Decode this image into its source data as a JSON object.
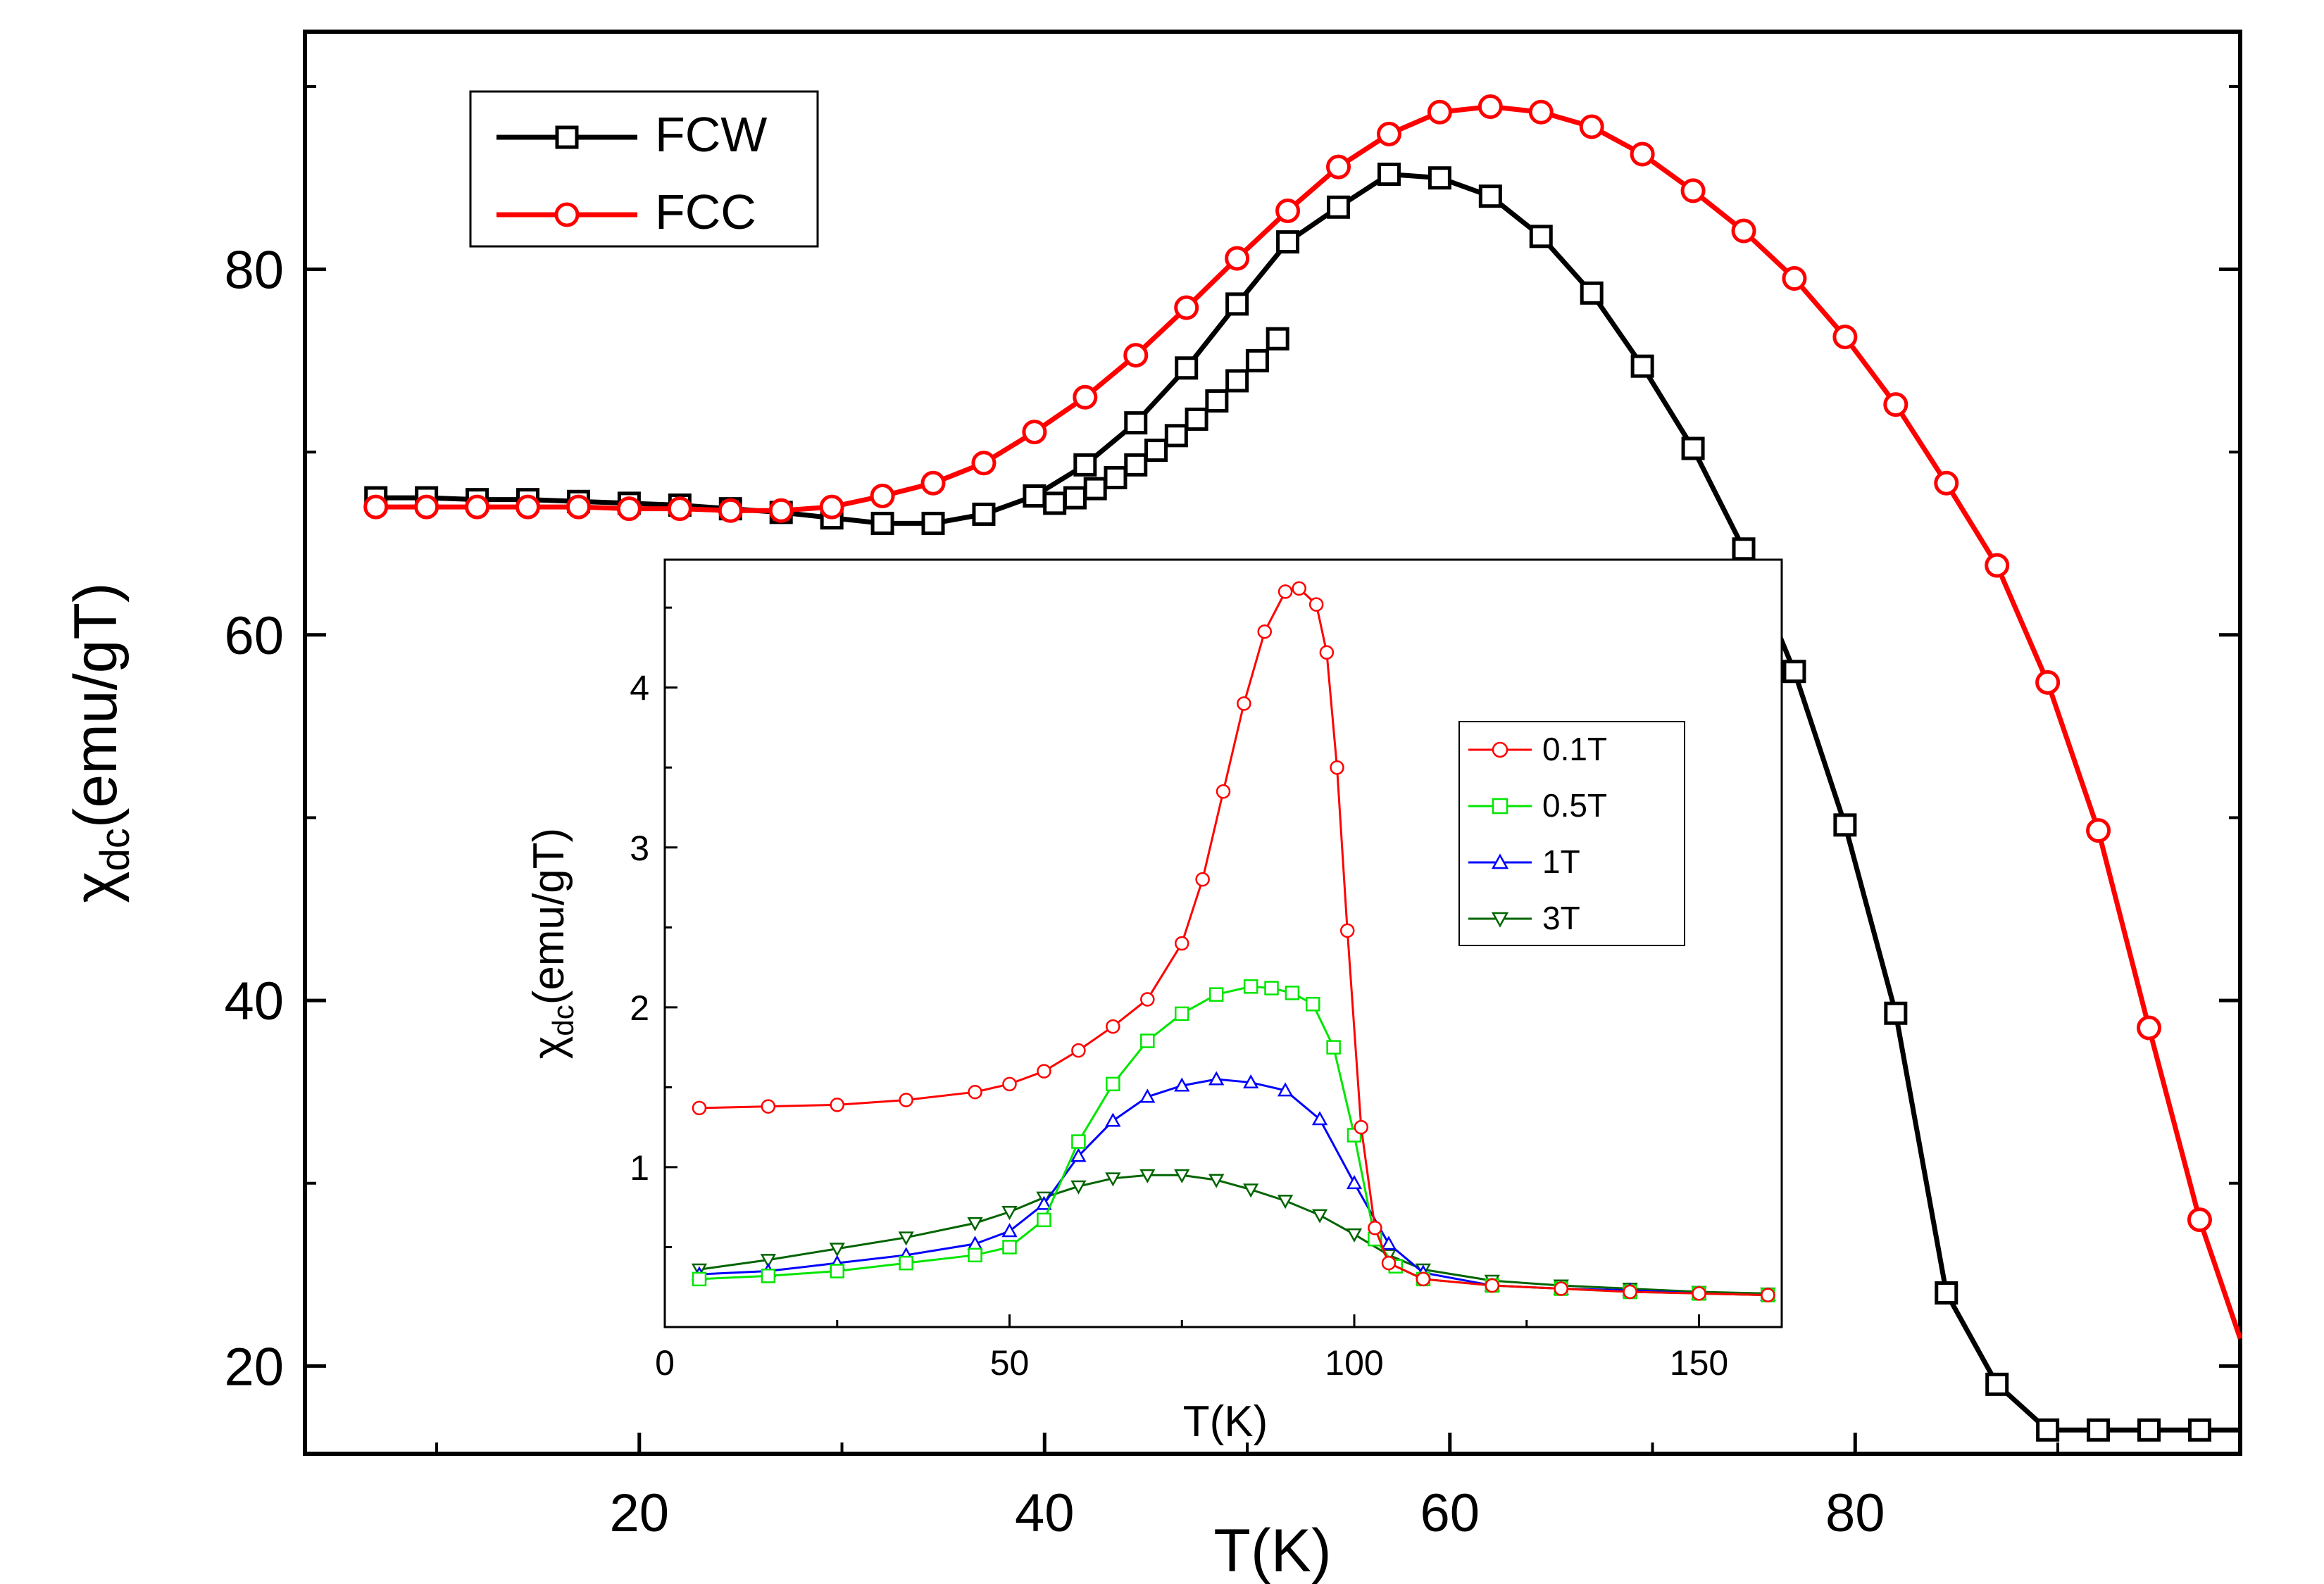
{
  "chart_data": [
    {
      "id": "main",
      "type": "line",
      "xlabel": "T(K)",
      "ylabel_symbol": "χ",
      "ylabel_sub": "dc",
      "ylabel_rest": "(emu/gT)",
      "xlim": [
        3.5,
        99
      ],
      "ylim": [
        15.2,
        93
      ],
      "xticks": [
        20,
        40,
        60,
        80
      ],
      "yticks": [
        20,
        40,
        60,
        80
      ],
      "x_minor_ticks": [
        10,
        30,
        50,
        70,
        90
      ],
      "y_minor_ticks": [
        30,
        50,
        70,
        90
      ],
      "legend_position": "top-left",
      "series": [
        {
          "name": "FCW",
          "color": "#000000",
          "marker": "square",
          "x": [
            7,
            9.5,
            12,
            14.5,
            17,
            19.5,
            22,
            24.5,
            27,
            29.5,
            32,
            34.5,
            37,
            39.5,
            42,
            44.5,
            47,
            49.5,
            52,
            54.5,
            57,
            59.5,
            62,
            64.5,
            67,
            69.5,
            72,
            74.5,
            77,
            79.5,
            82,
            84.5,
            87,
            89.5,
            92,
            94.5,
            97,
            99
          ],
          "y": [
            67.5,
            67.5,
            67.4,
            67.4,
            67.3,
            67.2,
            67.1,
            66.9,
            66.7,
            66.4,
            66.1,
            66.1,
            66.6,
            67.6,
            69.3,
            71.6,
            74.6,
            78.1,
            81.5,
            83.4,
            85.2,
            85.0,
            84.0,
            81.8,
            78.7,
            74.7,
            70.2,
            64.7,
            58.0,
            49.6,
            39.3,
            24.0,
            19.0,
            16.5,
            16.5,
            16.5,
            16.5,
            16.5
          ],
          "x_marker_dense": [
            40.5,
            41.5,
            42.5,
            43.5,
            44.5,
            45.5,
            46.5,
            47.5,
            48.5,
            49.5,
            50.5,
            51.5
          ],
          "y_marker_dense": [
            67.2,
            67.5,
            68.0,
            68.6,
            69.3,
            70.1,
            70.9,
            71.8,
            72.8,
            73.9,
            75.0,
            76.2
          ]
        },
        {
          "name": "FCC",
          "color": "#ff0000",
          "marker": "circle",
          "x": [
            7,
            9.5,
            12,
            14.5,
            17,
            19.5,
            22,
            24.5,
            27,
            29.5,
            32,
            34.5,
            37,
            39.5,
            42,
            44.5,
            47,
            49.5,
            52,
            54.5,
            57,
            59.5,
            62,
            64.5,
            67,
            69.5,
            72,
            74.5,
            77,
            79.5,
            82,
            84.5,
            87,
            89.5,
            92,
            94.5,
            97,
            99
          ],
          "y": [
            67.0,
            67.0,
            67.0,
            67.0,
            67.0,
            66.9,
            66.9,
            66.8,
            66.8,
            67.0,
            67.6,
            68.3,
            69.4,
            71.1,
            73.0,
            75.3,
            77.9,
            80.6,
            83.2,
            85.6,
            87.4,
            88.6,
            88.9,
            88.6,
            87.8,
            86.3,
            84.3,
            82.1,
            79.5,
            76.3,
            72.6,
            68.3,
            63.8,
            57.4,
            49.3,
            38.5,
            28.0,
            21.5
          ]
        }
      ]
    },
    {
      "id": "inset",
      "type": "line",
      "xlabel": "T(K)",
      "ylabel_symbol": "χ",
      "ylabel_sub": "dc",
      "ylabel_rest": "(emu/gT)",
      "xlim": [
        0,
        162
      ],
      "ylim": [
        0,
        4.8
      ],
      "xticks": [
        0,
        50,
        100,
        150
      ],
      "yticks": [
        1,
        2,
        3,
        4
      ],
      "legend_position": "top-right",
      "series": [
        {
          "name": "0.1T",
          "color": "#ff0000",
          "marker": "circle",
          "x": [
            5,
            15,
            25,
            35,
            45,
            50,
            55,
            60,
            65,
            70,
            75,
            78,
            81,
            84,
            87,
            90,
            92,
            94.5,
            96,
            97.5,
            99,
            101,
            103,
            105,
            110,
            120,
            130,
            140,
            150,
            160
          ],
          "y": [
            1.37,
            1.38,
            1.39,
            1.42,
            1.47,
            1.52,
            1.6,
            1.73,
            1.88,
            2.05,
            2.4,
            2.8,
            3.35,
            3.9,
            4.35,
            4.6,
            4.62,
            4.52,
            4.22,
            3.5,
            2.48,
            1.25,
            0.62,
            0.4,
            0.3,
            0.26,
            0.24,
            0.22,
            0.21,
            0.2
          ]
        },
        {
          "name": "0.5T",
          "color": "#00e600",
          "marker": "square",
          "x": [
            5,
            15,
            25,
            35,
            45,
            50,
            55,
            60,
            65,
            70,
            75,
            80,
            85,
            88,
            91,
            94,
            97,
            100,
            103,
            106,
            110,
            120,
            130,
            140,
            150,
            160
          ],
          "y": [
            0.3,
            0.32,
            0.35,
            0.4,
            0.45,
            0.5,
            0.67,
            1.16,
            1.52,
            1.79,
            1.96,
            2.08,
            2.13,
            2.12,
            2.09,
            2.02,
            1.75,
            1.2,
            0.55,
            0.38,
            0.3,
            0.26,
            0.24,
            0.22,
            0.21,
            0.2
          ]
        },
        {
          "name": "1T",
          "color": "#0000ff",
          "marker": "triangle-up",
          "x": [
            5,
            15,
            25,
            35,
            45,
            50,
            55,
            60,
            65,
            70,
            75,
            80,
            85,
            90,
            95,
            100,
            105,
            110,
            120,
            130,
            140,
            150,
            160
          ],
          "y": [
            0.33,
            0.35,
            0.4,
            0.45,
            0.52,
            0.6,
            0.77,
            1.07,
            1.29,
            1.44,
            1.51,
            1.55,
            1.53,
            1.48,
            1.3,
            0.9,
            0.52,
            0.34,
            0.26,
            0.24,
            0.23,
            0.21,
            0.2
          ]
        },
        {
          "name": "3T",
          "color": "#006400",
          "marker": "triangle-down",
          "x": [
            5,
            15,
            25,
            35,
            45,
            50,
            55,
            60,
            65,
            70,
            75,
            80,
            85,
            90,
            95,
            100,
            105,
            110,
            120,
            130,
            140,
            150,
            160
          ],
          "y": [
            0.36,
            0.42,
            0.49,
            0.56,
            0.65,
            0.72,
            0.81,
            0.88,
            0.93,
            0.95,
            0.95,
            0.92,
            0.86,
            0.79,
            0.7,
            0.58,
            0.45,
            0.36,
            0.29,
            0.26,
            0.24,
            0.22,
            0.21
          ]
        }
      ]
    }
  ]
}
